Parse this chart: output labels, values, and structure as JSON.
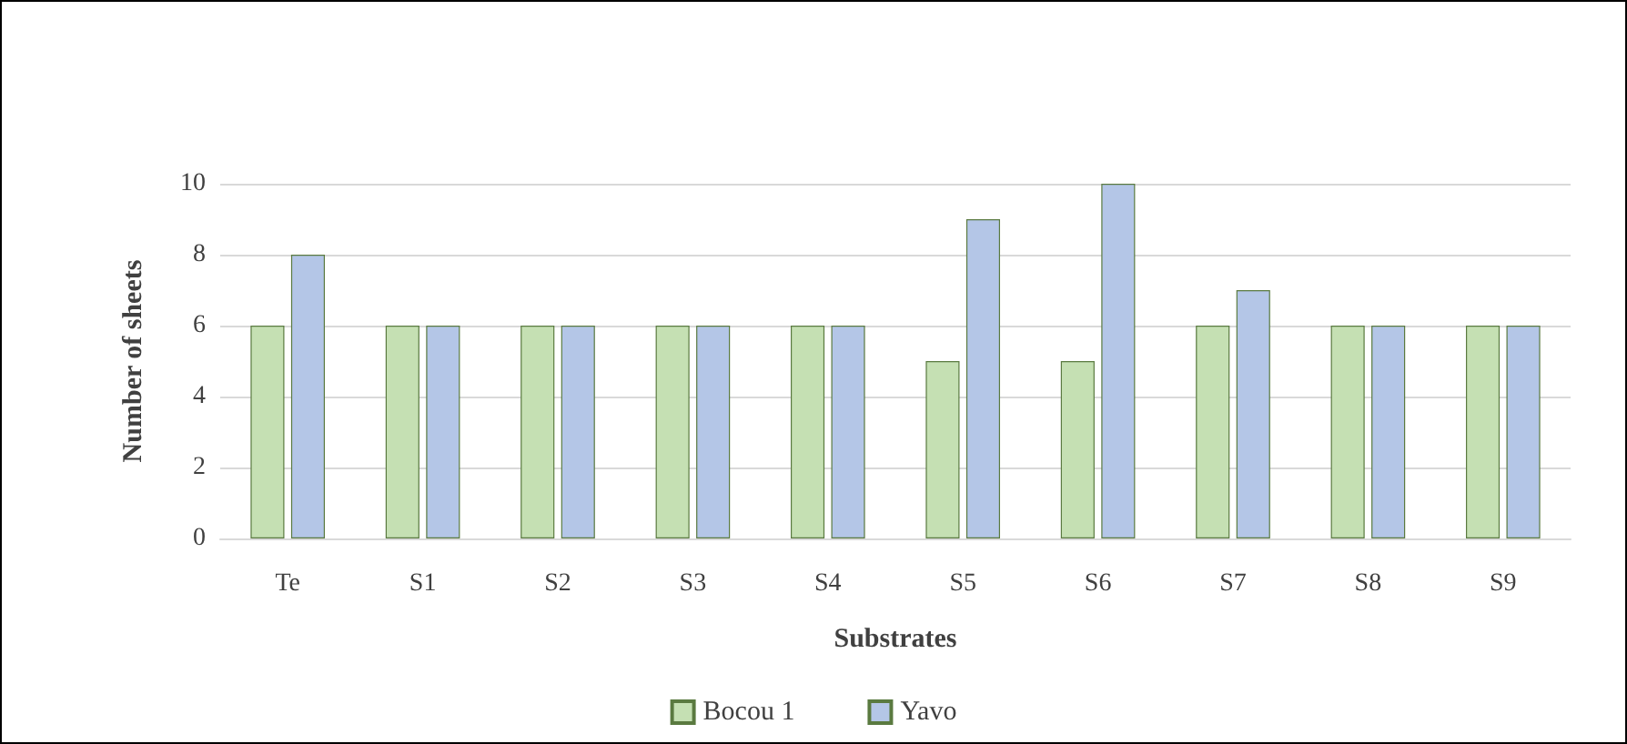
{
  "chart_data": {
    "type": "bar",
    "xlabel": "Substrates",
    "ylabel": "Number of sheets",
    "categories": [
      "Te",
      "S1",
      "S2",
      "S3",
      "S4",
      "S5",
      "S6",
      "S7",
      "S8",
      "S9"
    ],
    "series": [
      {
        "name": "Bocou 1",
        "color": "#c5e0b3",
        "values": [
          6,
          6,
          6,
          6,
          6,
          5,
          5,
          6,
          6,
          6
        ]
      },
      {
        "name": "Yavo",
        "color": "#b4c6e7",
        "values": [
          8,
          6,
          6,
          6,
          6,
          9,
          10,
          7,
          6,
          6
        ]
      }
    ],
    "ylim": [
      0,
      10
    ],
    "yticks": [
      0,
      2,
      4,
      6,
      8,
      10
    ],
    "grid": "y",
    "legend": "bottom"
  }
}
